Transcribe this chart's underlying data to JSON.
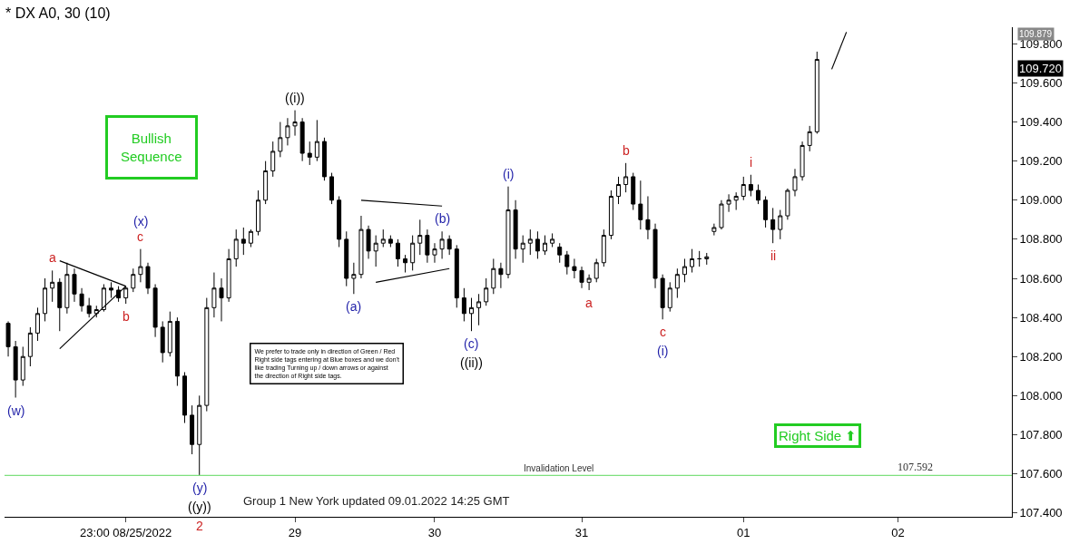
{
  "chart_data": {
    "type": "candlestick",
    "title": "* DX A0, 30 (10)",
    "categories": [
      null,
      null,
      null,
      null,
      null,
      null,
      null,
      null,
      null,
      null,
      null,
      null,
      null,
      null,
      null,
      null,
      "23:00 08/25/2022",
      null,
      null,
      null,
      null,
      null,
      null,
      null,
      null,
      null,
      null,
      null,
      null,
      null,
      null,
      null,
      null,
      null,
      null,
      null,
      null,
      null,
      null,
      "29",
      null,
      null,
      null,
      null,
      null,
      null,
      null,
      null,
      null,
      null,
      null,
      null,
      null,
      null,
      null,
      null,
      null,
      null,
      "30",
      null,
      null,
      null,
      null,
      null,
      null,
      null,
      null,
      null,
      null,
      null,
      null,
      null,
      null,
      null,
      null,
      null,
      null,
      null,
      "31",
      null,
      null,
      null,
      null,
      null,
      null,
      null,
      null,
      null,
      null,
      null,
      null,
      null,
      null,
      null,
      null,
      null,
      null,
      null,
      null,
      null,
      "01",
      null,
      null,
      null,
      null,
      null,
      null,
      null,
      null,
      null,
      null,
      null,
      null,
      null,
      null,
      null,
      null,
      null,
      null,
      null,
      null,
      "02",
      null,
      null,
      null,
      null,
      null,
      null,
      null,
      null,
      null,
      null,
      null,
      null,
      null,
      null,
      null
    ],
    "ohlc": [
      [
        108.37,
        108.38,
        108.2,
        108.25
      ],
      [
        108.25,
        108.28,
        107.99,
        108.08
      ],
      [
        108.08,
        108.25,
        108.05,
        108.2
      ],
      [
        108.2,
        108.35,
        108.15,
        108.32
      ],
      [
        108.32,
        108.45,
        108.28,
        108.42
      ],
      [
        108.42,
        108.6,
        108.38,
        108.55
      ],
      [
        108.55,
        108.64,
        108.48,
        108.58
      ],
      [
        108.58,
        108.6,
        108.33,
        108.45
      ],
      [
        108.45,
        108.68,
        108.42,
        108.62
      ],
      [
        108.62,
        108.65,
        108.48,
        108.52
      ],
      [
        108.52,
        108.55,
        108.43,
        108.46
      ],
      [
        108.46,
        108.5,
        108.4,
        108.42
      ],
      [
        108.42,
        108.46,
        108.4,
        108.44
      ],
      [
        108.44,
        108.57,
        108.43,
        108.55
      ],
      [
        108.55,
        108.58,
        108.5,
        108.54
      ],
      [
        108.54,
        108.56,
        108.48,
        108.5
      ],
      [
        108.5,
        108.56,
        108.47,
        108.55
      ],
      [
        108.55,
        108.65,
        108.53,
        108.62
      ],
      [
        108.62,
        108.75,
        108.58,
        108.66
      ],
      [
        108.66,
        108.68,
        108.52,
        108.55
      ],
      [
        108.55,
        108.57,
        108.3,
        108.35
      ],
      [
        108.35,
        108.38,
        108.17,
        108.22
      ],
      [
        108.22,
        108.43,
        108.2,
        108.38
      ],
      [
        108.38,
        108.4,
        108.05,
        108.1
      ],
      [
        108.1,
        108.12,
        107.86,
        107.9
      ],
      [
        107.9,
        107.95,
        107.7,
        107.75
      ],
      [
        107.75,
        108.0,
        107.592,
        107.95
      ],
      [
        107.95,
        108.5,
        107.92,
        108.45
      ],
      [
        108.45,
        108.63,
        108.4,
        108.55
      ],
      [
        108.55,
        108.6,
        108.38,
        108.5
      ],
      [
        108.5,
        108.75,
        108.48,
        108.7
      ],
      [
        108.7,
        108.85,
        108.66,
        108.8
      ],
      [
        108.8,
        108.86,
        108.72,
        108.78
      ],
      [
        108.78,
        108.85,
        108.76,
        108.84
      ],
      [
        108.84,
        109.05,
        108.82,
        109.0
      ],
      [
        109.0,
        109.2,
        108.98,
        109.15
      ],
      [
        109.15,
        109.3,
        109.12,
        109.25
      ],
      [
        109.25,
        109.4,
        109.22,
        109.32
      ],
      [
        109.32,
        109.42,
        109.28,
        109.38
      ],
      [
        109.38,
        109.46,
        109.33,
        109.4
      ],
      [
        109.4,
        109.42,
        109.2,
        109.24
      ],
      [
        109.24,
        109.3,
        109.18,
        109.22
      ],
      [
        109.22,
        109.41,
        109.2,
        109.3
      ],
      [
        109.3,
        109.32,
        109.1,
        109.12
      ],
      [
        109.12,
        109.14,
        108.98,
        109.0
      ],
      [
        109.0,
        109.02,
        108.76,
        108.8
      ],
      [
        108.8,
        108.84,
        108.56,
        108.6
      ],
      [
        108.6,
        108.68,
        108.52,
        108.62
      ],
      [
        108.62,
        108.92,
        108.6,
        108.85
      ],
      [
        108.85,
        108.87,
        108.7,
        108.74
      ],
      [
        108.74,
        108.82,
        108.66,
        108.78
      ],
      [
        108.78,
        108.85,
        108.76,
        108.8
      ],
      [
        108.8,
        108.82,
        108.76,
        108.78
      ],
      [
        108.78,
        108.8,
        108.66,
        108.7
      ],
      [
        108.7,
        108.72,
        108.63,
        108.68
      ],
      [
        108.68,
        108.82,
        108.64,
        108.78
      ],
      [
        108.78,
        108.9,
        108.72,
        108.82
      ],
      [
        108.82,
        108.85,
        108.68,
        108.72
      ],
      [
        108.72,
        108.78,
        108.68,
        108.75
      ],
      [
        108.75,
        108.84,
        108.7,
        108.8
      ],
      [
        108.8,
        108.82,
        108.72,
        108.75
      ],
      [
        108.75,
        108.77,
        108.45,
        108.5
      ],
      [
        108.5,
        108.55,
        108.38,
        108.42
      ],
      [
        108.42,
        108.5,
        108.33,
        108.45
      ],
      [
        108.45,
        108.52,
        108.36,
        108.48
      ],
      [
        108.48,
        108.6,
        108.46,
        108.55
      ],
      [
        108.55,
        108.7,
        108.52,
        108.65
      ],
      [
        108.65,
        108.68,
        108.55,
        108.62
      ],
      [
        108.62,
        109.07,
        108.6,
        108.95
      ],
      [
        108.95,
        109.0,
        108.7,
        108.75
      ],
      [
        108.75,
        108.82,
        108.68,
        108.78
      ],
      [
        108.78,
        108.85,
        108.72,
        108.8
      ],
      [
        108.8,
        108.84,
        108.7,
        108.74
      ],
      [
        108.74,
        108.82,
        108.72,
        108.78
      ],
      [
        108.78,
        108.83,
        108.76,
        108.8
      ],
      [
        108.76,
        108.78,
        108.68,
        108.72
      ],
      [
        108.72,
        108.74,
        108.62,
        108.66
      ],
      [
        108.66,
        108.7,
        108.6,
        108.64
      ],
      [
        108.64,
        108.66,
        108.55,
        108.58
      ],
      [
        108.58,
        108.62,
        108.54,
        108.6
      ],
      [
        108.6,
        108.7,
        108.58,
        108.68
      ],
      [
        108.68,
        108.85,
        108.66,
        108.82
      ],
      [
        108.82,
        109.05,
        108.8,
        109.02
      ],
      [
        109.02,
        109.12,
        108.98,
        109.08
      ],
      [
        109.08,
        109.19,
        109.04,
        109.12
      ],
      [
        109.12,
        109.14,
        108.95,
        108.98
      ],
      [
        108.98,
        109.1,
        108.85,
        108.9
      ],
      [
        108.9,
        109.02,
        108.8,
        108.85
      ],
      [
        108.85,
        108.88,
        108.55,
        108.6
      ],
      [
        108.6,
        108.62,
        108.39,
        108.45
      ],
      [
        108.45,
        108.58,
        108.43,
        108.55
      ],
      [
        108.55,
        108.65,
        108.5,
        108.62
      ],
      [
        108.62,
        108.7,
        108.58,
        108.66
      ],
      [
        108.66,
        108.75,
        108.63,
        108.7
      ],
      [
        108.7,
        108.74,
        108.66,
        108.7
      ],
      [
        108.7,
        108.73,
        108.67,
        108.71
      ],
      [
        108.84,
        108.88,
        108.82,
        108.86
      ],
      [
        108.86,
        109.0,
        108.85,
        108.98
      ],
      [
        108.98,
        109.03,
        108.94,
        109.0
      ],
      [
        109.0,
        109.04,
        108.95,
        109.02
      ],
      [
        109.02,
        109.12,
        109.0,
        109.08
      ],
      [
        109.08,
        109.13,
        109.02,
        109.05
      ],
      [
        109.05,
        109.08,
        108.98,
        109.0
      ],
      [
        109.0,
        109.02,
        108.86,
        108.9
      ],
      [
        108.9,
        108.96,
        108.78,
        108.85
      ],
      [
        108.85,
        108.95,
        108.8,
        108.92
      ],
      [
        108.92,
        109.06,
        108.9,
        109.05
      ],
      [
        109.05,
        109.16,
        109.02,
        109.12
      ],
      [
        109.12,
        109.3,
        109.1,
        109.28
      ],
      [
        109.28,
        109.38,
        109.25,
        109.35
      ],
      [
        109.35,
        109.76,
        109.34,
        109.72
      ],
      null,
      null,
      null,
      null,
      null,
      null,
      null,
      null,
      null,
      null,
      null,
      null,
      null,
      null,
      null,
      null,
      null,
      null,
      null,
      null,
      null,
      null,
      null,
      null,
      null,
      null
    ],
    "color": "#000000",
    "series": [
      {
        "type": "line",
        "color": "#000000",
        "values": [
          null,
          null,
          null,
          null,
          null,
          null,
          null,
          108.69,
          null,
          null,
          null,
          null,
          null,
          null,
          null,
          null,
          108.56,
          null,
          null,
          null,
          null,
          null,
          null,
          null,
          null,
          null,
          null,
          null,
          null,
          null,
          null,
          null,
          null,
          null,
          null,
          null,
          null,
          null,
          null,
          null,
          null,
          null,
          null,
          null,
          null,
          null,
          null,
          null,
          null,
          null,
          null,
          null,
          null,
          null,
          null,
          null,
          null,
          null,
          null,
          null,
          null,
          null,
          null,
          null,
          null,
          null,
          null,
          null,
          null,
          null,
          null,
          null,
          null,
          null,
          null,
          null,
          null,
          null,
          null,
          null,
          null,
          null,
          null,
          null,
          null,
          null,
          null,
          null,
          null,
          null,
          null,
          null,
          null,
          null,
          null,
          null,
          null,
          null,
          null,
          null,
          null,
          null,
          null,
          null,
          null,
          null,
          null,
          null,
          null,
          null,
          null,
          null,
          null,
          null,
          null,
          null,
          null,
          null,
          null,
          null,
          null,
          null,
          null,
          null,
          null,
          null,
          null,
          null,
          null,
          null,
          null,
          null,
          null,
          null,
          null,
          null,
          null
        ]
      },
      {
        "type": "line",
        "color": "#000000",
        "values": [
          null,
          null,
          null,
          null,
          null,
          null,
          null,
          108.24,
          null,
          null,
          null,
          null,
          null,
          null,
          null,
          null,
          108.56,
          null,
          null,
          null,
          null,
          null,
          null,
          null,
          null,
          null,
          null,
          null,
          null,
          null,
          null,
          null,
          null,
          null,
          null,
          null,
          null,
          null,
          null,
          null,
          null,
          null,
          null,
          null,
          null,
          null,
          null,
          null,
          null,
          null,
          null,
          null,
          null,
          null,
          null,
          null,
          null,
          null,
          null,
          null,
          null,
          null,
          null,
          null,
          null,
          null,
          null,
          null,
          null,
          null,
          null,
          null,
          null,
          null,
          null,
          null,
          null,
          null,
          null,
          null,
          null,
          null,
          null,
          null,
          null,
          null,
          null,
          null,
          null,
          null,
          null,
          null,
          null,
          null,
          null,
          null,
          null,
          null,
          null,
          null,
          null,
          null,
          null,
          null,
          null,
          null,
          null,
          null,
          null,
          null,
          null,
          null,
          null,
          null,
          null,
          null,
          null,
          null,
          null,
          null,
          null,
          null,
          null,
          null,
          null,
          null,
          null,
          null,
          null,
          null,
          null,
          null,
          null,
          null,
          null,
          null,
          null
        ]
      },
      {
        "type": "line",
        "color": "#000000",
        "values": [
          null,
          null,
          null,
          null,
          null,
          null,
          null,
          null,
          null,
          null,
          null,
          null,
          null,
          null,
          null,
          null,
          null,
          null,
          null,
          null,
          null,
          null,
          null,
          null,
          null,
          null,
          null,
          null,
          null,
          null,
          null,
          null,
          null,
          null,
          null,
          null,
          null,
          null,
          null,
          null,
          null,
          null,
          null,
          null,
          null,
          null,
          null,
          null,
          109.0,
          null,
          null,
          null,
          null,
          null,
          null,
          null,
          null,
          null,
          null,
          108.97,
          null,
          null,
          null,
          null,
          null,
          null,
          null,
          null,
          null,
          null,
          null,
          null,
          null,
          null,
          null,
          null,
          null,
          null,
          null,
          null,
          null,
          null,
          null,
          null,
          null,
          null,
          null,
          null,
          null,
          null,
          null,
          null,
          null,
          null,
          null,
          null,
          null,
          null,
          null,
          null,
          null,
          null,
          null,
          null,
          null,
          null,
          null,
          null,
          null,
          null,
          null,
          null,
          null,
          null,
          null,
          null,
          null,
          null,
          null,
          null,
          null,
          null,
          null,
          null,
          null,
          null,
          null,
          null,
          null,
          null,
          null,
          null,
          null,
          null,
          null,
          null,
          null
        ]
      },
      {
        "type": "line",
        "color": "#000000",
        "values": [
          null,
          null,
          null,
          null,
          null,
          null,
          null,
          null,
          null,
          null,
          null,
          null,
          null,
          null,
          null,
          null,
          null,
          null,
          null,
          null,
          null,
          null,
          null,
          null,
          null,
          null,
          null,
          null,
          null,
          null,
          null,
          null,
          null,
          null,
          null,
          null,
          null,
          null,
          null,
          null,
          null,
          null,
          null,
          null,
          null,
          null,
          null,
          null,
          null,
          null,
          108.58,
          null,
          null,
          null,
          null,
          null,
          null,
          null,
          null,
          null,
          108.65,
          null,
          null,
          null,
          null,
          null,
          null,
          null,
          null,
          null,
          null,
          null,
          null,
          null,
          null,
          null,
          null,
          null,
          null,
          null,
          null,
          null,
          null,
          null,
          null,
          null,
          null,
          null,
          null,
          null,
          null,
          null,
          null,
          null,
          null,
          null,
          null,
          null,
          null,
          null,
          null,
          null,
          null,
          null,
          null,
          null,
          null,
          null,
          null,
          null,
          null,
          null,
          null,
          null,
          null,
          null,
          null,
          null,
          null,
          null,
          null,
          null,
          null,
          null,
          null,
          null,
          null,
          null,
          null,
          null,
          null,
          null,
          null,
          null,
          null,
          null,
          null
        ]
      },
      {
        "type": "line",
        "color": "#000000",
        "values": [
          null,
          null,
          null,
          null,
          null,
          null,
          null,
          null,
          null,
          null,
          null,
          null,
          null,
          null,
          null,
          null,
          null,
          null,
          null,
          null,
          null,
          null,
          null,
          null,
          null,
          null,
          null,
          null,
          null,
          null,
          null,
          null,
          null,
          null,
          null,
          null,
          null,
          null,
          null,
          null,
          null,
          null,
          null,
          null,
          null,
          null,
          null,
          null,
          null,
          null,
          null,
          null,
          null,
          null,
          null,
          null,
          null,
          null,
          null,
          null,
          null,
          null,
          null,
          null,
          null,
          null,
          null,
          null,
          null,
          null,
          null,
          null,
          null,
          null,
          null,
          null,
          null,
          null,
          null,
          null,
          null,
          null,
          null,
          null,
          null,
          null,
          null,
          null,
          null,
          null,
          null,
          null,
          null,
          null,
          null,
          null,
          null,
          null,
          null,
          null,
          null,
          null,
          null,
          null,
          null,
          null,
          null,
          null,
          null,
          null,
          null,
          null,
          109.67,
          null,
          109.86,
          null,
          null,
          null,
          null,
          null,
          null,
          null,
          null,
          null,
          null,
          null,
          null,
          null,
          null,
          null,
          null,
          null,
          null,
          null,
          null,
          null,
          null
        ]
      }
    ],
    "ylim": [
      107.38,
      109.885
    ],
    "yticks": [
      {
        "value": 107.4,
        "label": "107.400"
      },
      {
        "value": 107.6,
        "label": "107.600"
      },
      {
        "value": 107.8,
        "label": "107.800"
      },
      {
        "value": 108.0,
        "label": "108.000"
      },
      {
        "value": 108.2,
        "label": "108.200"
      },
      {
        "value": 108.4,
        "label": "108.400"
      },
      {
        "value": 108.6,
        "label": "108.600"
      },
      {
        "value": 108.8,
        "label": "108.800"
      },
      {
        "value": 109.0,
        "label": "109.000"
      },
      {
        "value": 109.2,
        "label": "109.200"
      },
      {
        "value": 109.4,
        "label": "109.400"
      },
      {
        "value": 109.6,
        "label": "109.600"
      },
      {
        "value": 109.8,
        "label": "109.800"
      }
    ],
    "ref_lines": [
      {
        "axis": "y",
        "value": 107.592,
        "label": "Invalidation Level",
        "color": "#7ee07e"
      }
    ],
    "annotations": [
      "(w)",
      "a",
      "b",
      "c",
      "(x)",
      "(y)",
      "((y))",
      "2",
      "((i))",
      "(a)",
      "(b)",
      "(c)",
      "((ii))",
      "(i)",
      "a",
      "b",
      "c",
      "(i)",
      "i",
      "ii",
      "Bullish\nSequence",
      "We prefer to trade only in direction of Green / Red\nRight side tags entering at Blue boxes and we don't\nlike trading Turning up / down arrows or against\nthe direction of Right side tags.",
      "Right Side ⬆",
      "Group 1 New York updated 09.01.2022 14:25 GMT",
      "107.592",
      "109.720",
      "109.879"
    ]
  }
}
